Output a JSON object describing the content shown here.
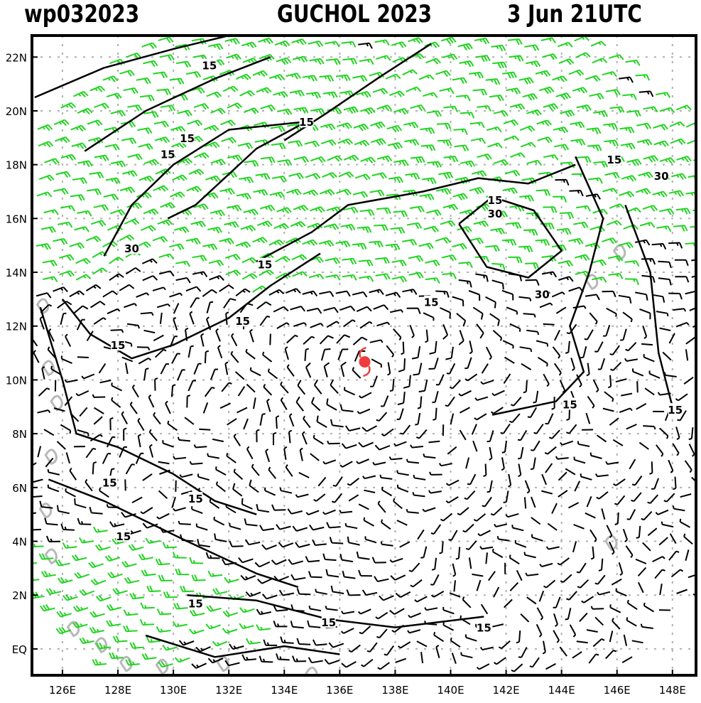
{
  "header": {
    "storm_id": "wp032023",
    "storm_title": "GUCHOL 2023",
    "valid_time": "3 Jun 21UTC"
  },
  "axes": {
    "lon_labels": [
      "126E",
      "128E",
      "130E",
      "132E",
      "134E",
      "136E",
      "138E",
      "140E",
      "142E",
      "144E",
      "146E",
      "148E"
    ],
    "lon_values": [
      126,
      128,
      130,
      132,
      134,
      136,
      138,
      140,
      142,
      144,
      146,
      148
    ],
    "lat_labels": [
      "22N",
      "20N",
      "18N",
      "16N",
      "14N",
      "12N",
      "10N",
      "8N",
      "6N",
      "4N",
      "2N",
      "EQ"
    ],
    "lat_values": [
      22,
      20,
      18,
      16,
      14,
      12,
      10,
      8,
      6,
      4,
      2,
      0
    ],
    "lon_range": [
      124.9,
      148.85
    ],
    "lat_range": [
      -0.98,
      22.8
    ]
  },
  "storm": {
    "lon": 136.9,
    "lat": 10.67,
    "color": "#f03c3c"
  },
  "colors": {
    "calm": "#000000",
    "moderate": "#22d422",
    "strong": "#e8a838",
    "grid": "#b0b0b0",
    "coast": "#b8b8b8"
  },
  "speed_thresholds_kt": [
    15,
    30
  ],
  "contour_labels": [
    {
      "text": "15",
      "lon": 131.3,
      "lat": 21.7
    },
    {
      "text": "15",
      "lon": 134.8,
      "lat": 19.6
    },
    {
      "text": "15",
      "lon": 130.5,
      "lat": 19.0
    },
    {
      "text": "15",
      "lon": 129.8,
      "lat": 18.4
    },
    {
      "text": "30",
      "lon": 128.5,
      "lat": 14.9
    },
    {
      "text": "15",
      "lon": 133.3,
      "lat": 14.3
    },
    {
      "text": "15",
      "lon": 132.5,
      "lat": 12.2
    },
    {
      "text": "15",
      "lon": 128.0,
      "lat": 11.3
    },
    {
      "text": "15",
      "lon": 139.3,
      "lat": 12.9
    },
    {
      "text": "15",
      "lon": 141.6,
      "lat": 16.7
    },
    {
      "text": "30",
      "lon": 141.6,
      "lat": 16.2
    },
    {
      "text": "30",
      "lon": 143.3,
      "lat": 13.2
    },
    {
      "text": "15",
      "lon": 145.9,
      "lat": 18.2
    },
    {
      "text": "30",
      "lon": 147.6,
      "lat": 17.6
    },
    {
      "text": "15",
      "lon": 144.3,
      "lat": 9.1
    },
    {
      "text": "15",
      "lon": 148.1,
      "lat": 8.9
    },
    {
      "text": "15",
      "lon": 127.7,
      "lat": 6.2
    },
    {
      "text": "15",
      "lon": 130.8,
      "lat": 5.6
    },
    {
      "text": "15",
      "lon": 128.2,
      "lat": 4.2
    },
    {
      "text": "15",
      "lon": 130.8,
      "lat": 1.7
    },
    {
      "text": "15",
      "lon": 135.6,
      "lat": 1.0
    },
    {
      "text": "15",
      "lon": 141.2,
      "lat": 0.8
    }
  ]
}
